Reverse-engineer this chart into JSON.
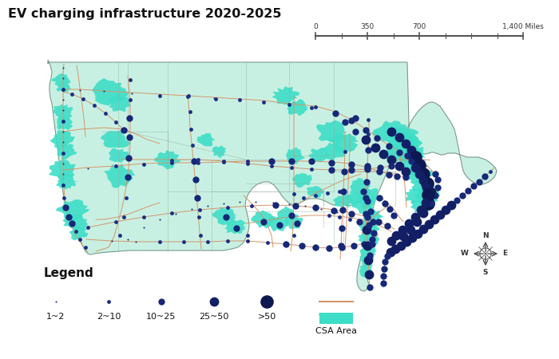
{
  "title": "EV charging infrastructure 2020-2025",
  "title_fontsize": 11.5,
  "bg_color": "#ffffff",
  "map_bg_color": "#c8f0e2",
  "csa_color": "#3ddec8",
  "freeway_color": "#d4956a",
  "border_color": "#8ab0a0",
  "state_border_color": "#8aaa98",
  "dot_color": "#1a2a7a",
  "legend_labels": [
    "1~2",
    "2~10",
    "10~25",
    "25~50",
    ">50"
  ],
  "dot_sizes": [
    1.5,
    3.5,
    6.0,
    8.5,
    12.0
  ]
}
